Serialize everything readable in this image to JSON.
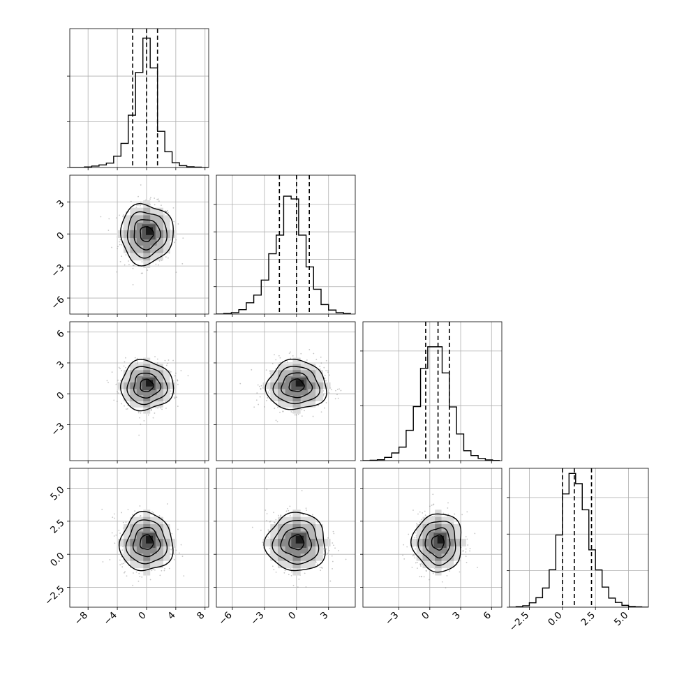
{
  "chart_data": {
    "type": "corner",
    "n_params": 4,
    "colors": {
      "line": "#000000",
      "grid": "#b0b0b0",
      "points": "#7f7f7f",
      "background": "#ffffff"
    },
    "grid": true,
    "quantiles": [
      0.16,
      0.5,
      0.84
    ],
    "params": [
      {
        "range": [
          -10.5,
          8.5
        ],
        "ticks": [
          -8,
          -4,
          0,
          4,
          8
        ],
        "tick_labels": [
          "−8",
          "−4",
          "0",
          "4",
          "8"
        ],
        "center": 0.0,
        "sigma": 1.8,
        "quantile_values": [
          -1.9,
          0.0,
          1.5
        ]
      },
      {
        "range": [
          -7.5,
          5.5
        ],
        "ticks": [
          -6,
          -3,
          0,
          3
        ],
        "tick_labels": [
          "−6",
          "−3",
          "0",
          "3"
        ],
        "center": 0.0,
        "sigma": 1.4,
        "quantile_values": [
          -1.6,
          0.0,
          1.2
        ]
      },
      {
        "range": [
          -6.5,
          7.0
        ],
        "ticks": [
          -3,
          0,
          3,
          6
        ],
        "tick_labels": [
          "−3",
          "0",
          "3",
          "6"
        ],
        "center": 0.8,
        "sigma": 1.2,
        "quantile_values": [
          -0.4,
          0.8,
          1.9
        ]
      },
      {
        "range": [
          -4.0,
          6.5
        ],
        "ticks": [
          -2.5,
          0.0,
          2.5,
          5.0
        ],
        "tick_labels": [
          "−2.5",
          "0.0",
          "2.5",
          "5.0"
        ],
        "center": 0.9,
        "sigma": 1.1,
        "quantile_values": [
          0.0,
          0.9,
          2.2
        ]
      }
    ],
    "histograms": [
      {
        "bins": [
          -10.5,
          -9.5,
          -8.5,
          -7.5,
          -6.5,
          -5.5,
          -4.5,
          -3.5,
          -2.5,
          -1.5,
          -0.5,
          0.5,
          1.5,
          2.5,
          3.5,
          4.5,
          5.5,
          6.5,
          7.5,
          8.5
        ],
        "counts": [
          0,
          0,
          3,
          8,
          14,
          24,
          62,
          132,
          286,
          520,
          708,
          545,
          198,
          86,
          26,
          10,
          4,
          2,
          0
        ],
        "ymax": 760,
        "yticks": [
          0,
          250,
          500
        ]
      },
      {
        "bins": [
          -7.5,
          -6.8,
          -6.1,
          -5.4,
          -4.7,
          -4.0,
          -3.3,
          -2.6,
          -1.9,
          -1.2,
          -0.5,
          0.2,
          0.9,
          1.6,
          2.3,
          3.0,
          3.7,
          4.4,
          5.1
        ],
        "counts": [
          0,
          3,
          8,
          24,
          62,
          104,
          186,
          330,
          432,
          645,
          630,
          432,
          258,
          136,
          52,
          22,
          8,
          3
        ],
        "ymax": 760,
        "yticks": [
          0,
          150,
          300,
          450,
          600
        ]
      },
      {
        "bins": [
          -6.5,
          -5.8,
          -5.1,
          -4.4,
          -3.7,
          -3.0,
          -2.3,
          -1.6,
          -0.9,
          -0.2,
          0.5,
          1.2,
          1.9,
          2.6,
          3.3,
          4.0,
          4.7,
          5.4,
          6.1,
          6.8
        ],
        "counts": [
          0,
          2,
          5,
          18,
          42,
          74,
          166,
          296,
          505,
          623,
          623,
          480,
          294,
          146,
          54,
          28,
          12,
          4,
          1
        ],
        "ymax": 760,
        "yticks": [
          0,
          300,
          600
        ]
      },
      {
        "bins": [
          -4.0,
          -3.5,
          -3.0,
          -2.5,
          -2.0,
          -1.5,
          -1.0,
          -0.5,
          0.0,
          0.5,
          1.0,
          1.5,
          2.0,
          2.5,
          3.0,
          3.5,
          4.0,
          4.5,
          5.0,
          5.5,
          6.0,
          6.5
        ],
        "counts": [
          0,
          3,
          8,
          24,
          52,
          105,
          205,
          395,
          620,
          732,
          676,
          533,
          314,
          204,
          110,
          50,
          26,
          10,
          4,
          2,
          0
        ],
        "ymax": 760,
        "yticks": [
          0,
          200,
          400,
          600
        ]
      }
    ],
    "correlations": {
      "1-0": 0.0,
      "2-0": 0.0,
      "2-1": 0.0,
      "3-0": -0.05,
      "3-1": -0.05,
      "3-2": 0.0
    }
  }
}
